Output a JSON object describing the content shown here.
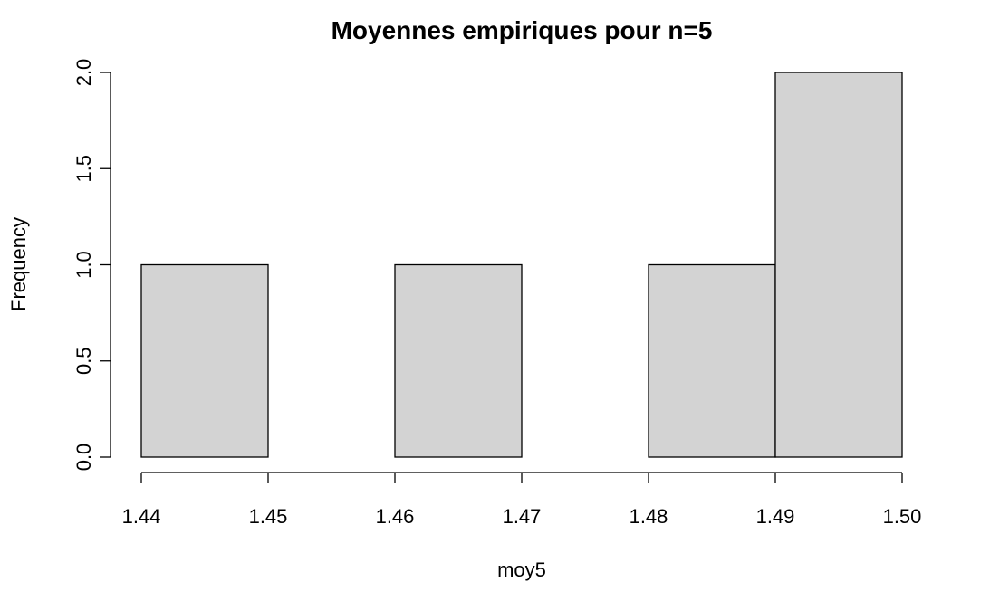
{
  "chart_data": {
    "type": "histogram",
    "title": "Moyennes empiriques pour n=5",
    "xlabel": "moy5",
    "ylabel": "Frequency",
    "bins": [
      {
        "start": 1.44,
        "end": 1.45,
        "count": 1
      },
      {
        "start": 1.45,
        "end": 1.46,
        "count": 0
      },
      {
        "start": 1.46,
        "end": 1.47,
        "count": 1
      },
      {
        "start": 1.47,
        "end": 1.48,
        "count": 0
      },
      {
        "start": 1.48,
        "end": 1.49,
        "count": 1
      },
      {
        "start": 1.49,
        "end": 1.5,
        "count": 2
      }
    ],
    "xlim": [
      1.44,
      1.5
    ],
    "ylim": [
      0,
      2
    ],
    "xticks": [
      {
        "value": 1.44,
        "label": "1.44"
      },
      {
        "value": 1.45,
        "label": "1.45"
      },
      {
        "value": 1.46,
        "label": "1.46"
      },
      {
        "value": 1.47,
        "label": "1.47"
      },
      {
        "value": 1.48,
        "label": "1.48"
      },
      {
        "value": 1.49,
        "label": "1.49"
      },
      {
        "value": 1.5,
        "label": "1.50"
      }
    ],
    "yticks": [
      {
        "value": 0,
        "label": "0.0"
      },
      {
        "value": 0.5,
        "label": "0.5"
      },
      {
        "value": 1,
        "label": "1.0"
      },
      {
        "value": 1.5,
        "label": "1.5"
      },
      {
        "value": 2,
        "label": "2.0"
      }
    ],
    "bar_fill": "#d3d3d3",
    "grid": false
  }
}
